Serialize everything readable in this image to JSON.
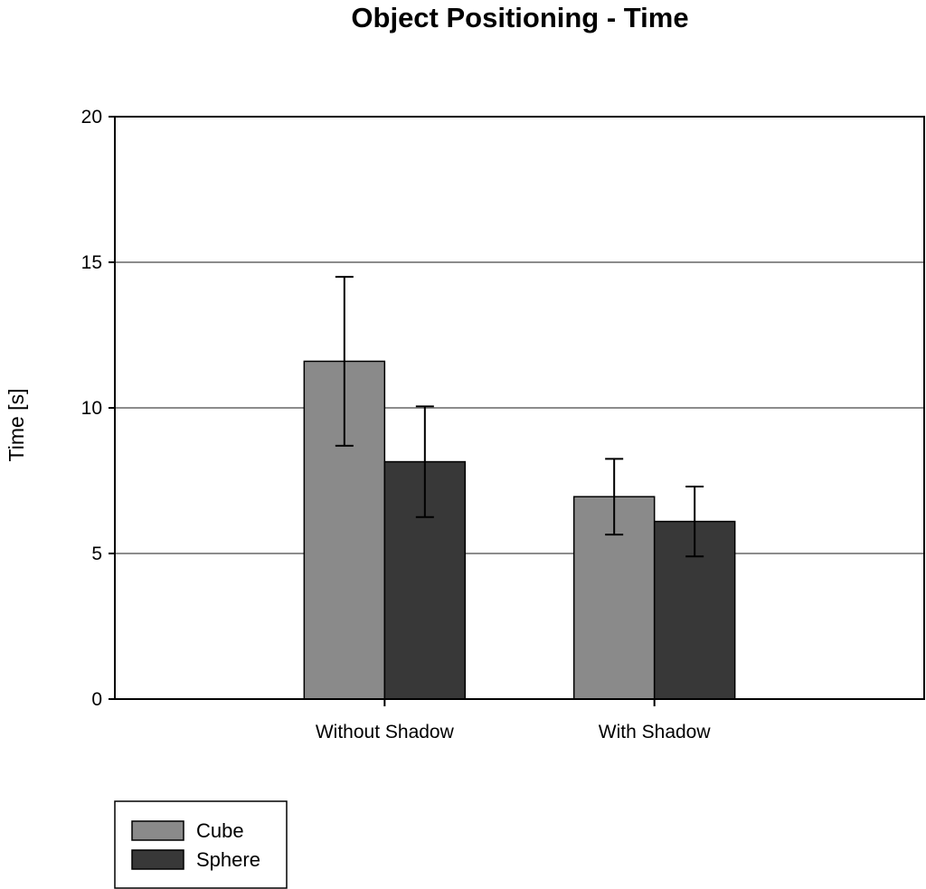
{
  "chart_data": {
    "type": "bar",
    "title": "Object Positioning - Time",
    "xlabel": "",
    "ylabel": "Time [s]",
    "ylim": [
      0,
      20
    ],
    "yticks": [
      0,
      5,
      10,
      15,
      20
    ],
    "grid": "horizontal",
    "legend_position": "bottom-left",
    "categories": [
      "Without Shadow",
      "With Shadow"
    ],
    "series": [
      {
        "name": "Cube",
        "color": "#8a8a8a",
        "values": [
          11.6,
          6.95
        ],
        "error": [
          2.9,
          1.3
        ]
      },
      {
        "name": "Sphere",
        "color": "#383838",
        "values": [
          8.15,
          6.1
        ],
        "error": [
          1.9,
          1.2
        ]
      }
    ]
  }
}
